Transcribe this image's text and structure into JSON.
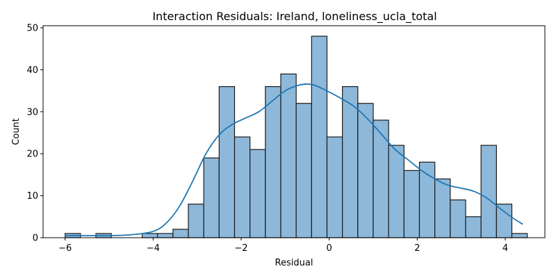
{
  "chart_data": {
    "type": "bar",
    "title": "Interaction Residuals: Ireland, loneliness_ucla_total",
    "xlabel": "Residual",
    "ylabel": "Count",
    "xlim": [
      -6.5,
      4.9
    ],
    "ylim": [
      0,
      50.5
    ],
    "xticks": [
      -6,
      -4,
      -2,
      0,
      2,
      4
    ],
    "yticks": [
      0,
      10,
      20,
      30,
      40,
      50
    ],
    "bin_start": -6.0,
    "bin_width": 0.35,
    "counts": [
      1,
      0,
      1,
      0,
      0,
      1,
      1,
      2,
      8,
      19,
      36,
      24,
      21,
      36,
      39,
      32,
      48,
      24,
      36,
      32,
      28,
      22,
      16,
      18,
      14,
      9,
      5,
      22,
      8,
      1
    ],
    "kde": {
      "x": [
        -6.0,
        -5.5,
        -5.0,
        -4.5,
        -4.0,
        -3.7,
        -3.4,
        -3.1,
        -2.8,
        -2.5,
        -2.2,
        -1.9,
        -1.6,
        -1.3,
        -1.0,
        -0.7,
        -0.5,
        -0.3,
        0.0,
        0.3,
        0.6,
        0.9,
        1.2,
        1.5,
        1.8,
        2.1,
        2.4,
        2.7,
        3.0,
        3.3,
        3.6,
        3.9,
        4.2,
        4.4
      ],
      "y": [
        0.5,
        0.5,
        0.5,
        0.7,
        1.5,
        3.5,
        7.5,
        13.5,
        20.0,
        24.5,
        27.0,
        28.5,
        30.0,
        32.5,
        35.0,
        36.3,
        36.6,
        36.2,
        34.7,
        33.0,
        31.0,
        28.0,
        24.5,
        21.0,
        18.5,
        16.0,
        14.0,
        12.5,
        11.8,
        11.0,
        9.3,
        6.8,
        4.5,
        3.2
      ]
    }
  }
}
